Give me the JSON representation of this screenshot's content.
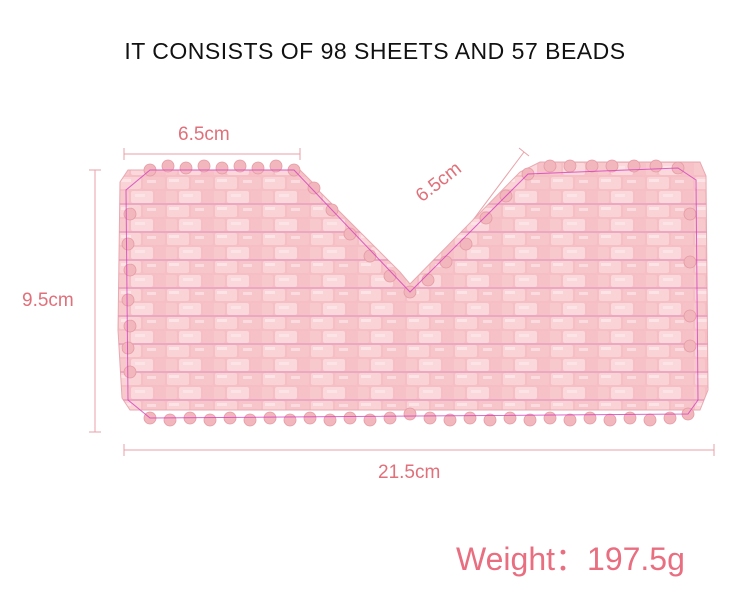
{
  "title": "IT CONSISTS OF 98 SHEETS AND 57 BEADS",
  "dimensions": {
    "top_left_width": "6.5cm",
    "diagonal": "6.5cm",
    "height": "9.5cm",
    "total_width": "21.5cm"
  },
  "weight": "Weight：197.5g",
  "colors": {
    "stone": "#f7c9cd",
    "stone_dark": "#eeb1b8",
    "bead": "#f2b6bd",
    "string": "#d43fbf",
    "dimension_line": "#e9a2a9",
    "dimension_text": "#e0707a",
    "weight_text": "#e86e80"
  }
}
